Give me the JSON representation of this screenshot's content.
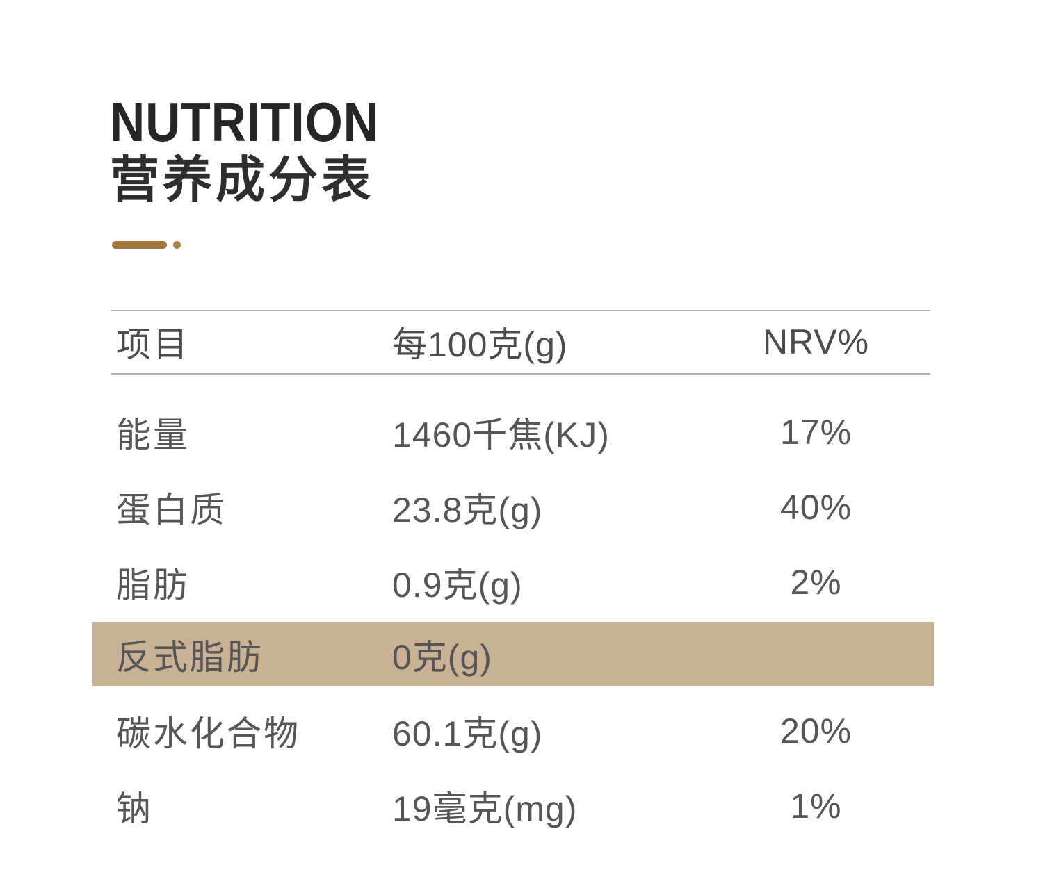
{
  "header": {
    "title_en": "NUTRITION",
    "title_cn": "营养成分表"
  },
  "colors": {
    "accent": "#a4763c",
    "highlight_row": "#c9b194",
    "table_line": "#b0b0b0",
    "title_text": "#262626",
    "body_text": "#565656"
  },
  "table": {
    "columns": [
      "项目",
      "每100克(g)",
      "NRV%"
    ],
    "rows": [
      {
        "label": "能量",
        "amount": "1460千焦(KJ)",
        "nrv": "17%",
        "highlight": false
      },
      {
        "label": "蛋白质",
        "amount": "23.8克(g)",
        "nrv": "40%",
        "highlight": false
      },
      {
        "label": "脂肪",
        "amount": "0.9克(g)",
        "nrv": "2%",
        "highlight": false
      },
      {
        "label": "反式脂肪",
        "amount": "0克(g)",
        "nrv": "",
        "highlight": true
      },
      {
        "label": "碳水化合物",
        "amount": "60.1克(g)",
        "nrv": "20%",
        "highlight": false
      },
      {
        "label": "钠",
        "amount": "19毫克(mg)",
        "nrv": "1%",
        "highlight": false
      }
    ]
  }
}
